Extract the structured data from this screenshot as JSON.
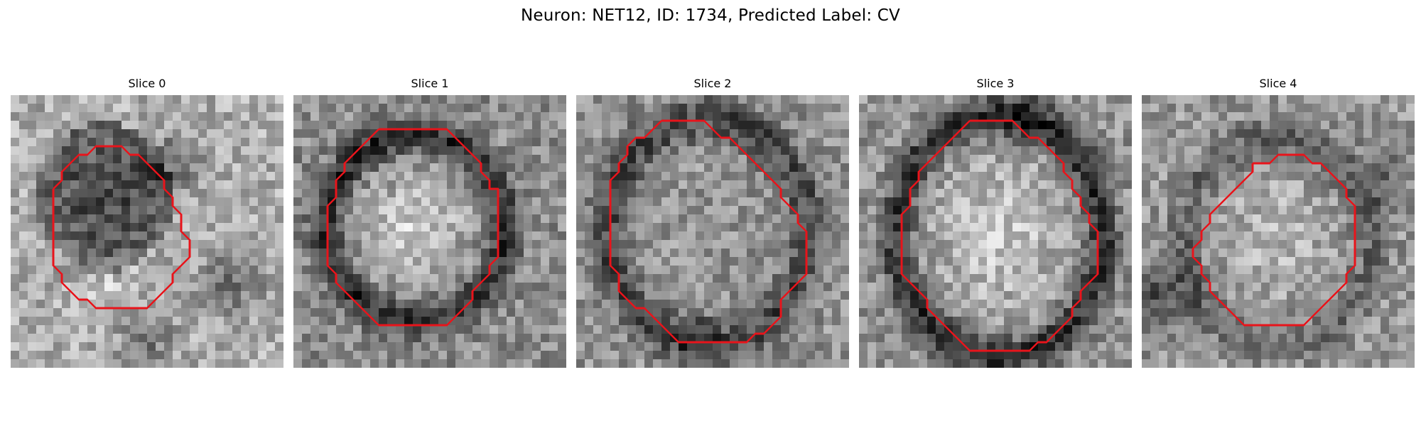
{
  "figure": {
    "title": "Neuron: NET12, ID: 1734, Predicted Label: CV"
  },
  "panels": [
    {
      "title": "Slice 0"
    },
    {
      "title": "Slice 1"
    },
    {
      "title": "Slice 2"
    },
    {
      "title": "Slice 3"
    },
    {
      "title": "Slice 4"
    }
  ],
  "contour_color": "#e8141b",
  "colormap": "grayscale"
}
